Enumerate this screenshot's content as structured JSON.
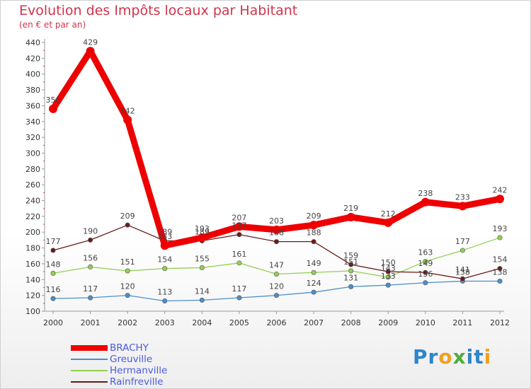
{
  "header": {
    "title": "Evolution des Impôts locaux par Habitant",
    "subtitle": "(en € et par an)"
  },
  "logo": {
    "letters": [
      {
        "char": "P",
        "color": "#2f86c8"
      },
      {
        "char": "r",
        "color": "#2f86c8"
      },
      {
        "char": "o",
        "color": "#f0a020"
      },
      {
        "char": "x",
        "color": "#4cae3c"
      },
      {
        "char": "i",
        "color": "#2f86c8"
      },
      {
        "char": "t",
        "color": "#2f86c8"
      },
      {
        "char": "i",
        "color": "#f0a020"
      }
    ]
  },
  "chart_data": {
    "type": "line",
    "x": [
      "2000",
      "2001",
      "2002",
      "2003",
      "2004",
      "2005",
      "2006",
      "2007",
      "2008",
      "2009",
      "2010",
      "2011",
      "2012"
    ],
    "ylim": [
      100,
      440
    ],
    "yticks": [
      "100",
      "120",
      "140",
      "160",
      "180",
      "200",
      "220",
      "240",
      "260",
      "280",
      "300",
      "320",
      "340",
      "360",
      "380",
      "400",
      "420",
      "440"
    ],
    "grid": false,
    "legend_position": "bottom-left",
    "series": [
      {
        "name": "BRACHY",
        "color": "#ee0000",
        "values": [
          356,
          429,
          342,
          183,
          193,
          207,
          203,
          209,
          219,
          212,
          238,
          233,
          242
        ],
        "labels": [
          "356",
          "429",
          "342",
          "183",
          "193",
          "207",
          "203",
          "209",
          "219",
          "212",
          "238",
          "233",
          "242"
        ]
      },
      {
        "name": "Greuville",
        "color": "#4a8fcf",
        "values": [
          116,
          117,
          120,
          113,
          114,
          117,
          120,
          124,
          131,
          133,
          136,
          138,
          138
        ],
        "labels": [
          "116",
          "117",
          "120",
          "113",
          "114",
          "117",
          "120",
          "124",
          "131",
          "133",
          "136",
          "138",
          "138"
        ]
      },
      {
        "name": "Hermanville",
        "color": "#92d050",
        "values": [
          148,
          156,
          151,
          154,
          155,
          161,
          147,
          149,
          151,
          143,
          163,
          177,
          193
        ],
        "labels": [
          "148",
          "156",
          "151",
          "154",
          "155",
          "161",
          "147",
          "149",
          "151",
          "143",
          "163",
          "177",
          "193"
        ]
      },
      {
        "name": "Rainfreville",
        "color": "#6b1a1a",
        "values": [
          177,
          190,
          209,
          189,
          189,
          197,
          188,
          188,
          159,
          150,
          149,
          141,
          154
        ],
        "labels": [
          "177",
          "190",
          "209",
          "189",
          "189",
          "197",
          "188",
          "188",
          "159",
          "150",
          "149",
          "141",
          "154"
        ]
      }
    ]
  }
}
